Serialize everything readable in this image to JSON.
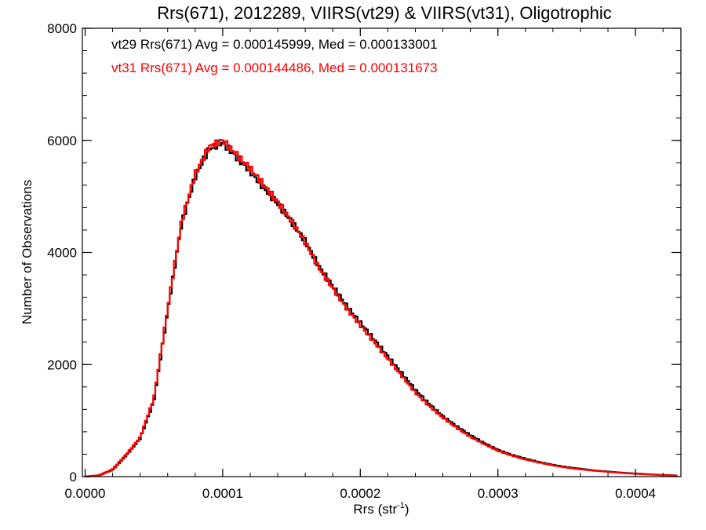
{
  "chart_data": {
    "type": "line",
    "title": "Rrs(671), 2012289, VIIRS(vt29) & VIIRS(vt31), Oligotrophic",
    "xlabel_base": "Rrs (str",
    "xlabel_sup": "-1",
    "xlabel_end": ")",
    "ylabel": "Number of Observations",
    "xlim": [
      -2e-06,
      0.000433
    ],
    "ylim": [
      0,
      8000
    ],
    "x_ticks": [
      0,
      0.0001,
      0.0002,
      0.0003,
      0.0004
    ],
    "x_tick_labels": [
      "0.0000",
      "0.0001",
      "0.0002",
      "0.0003",
      "0.0004"
    ],
    "y_ticks": [
      0,
      2000,
      4000,
      6000,
      8000
    ],
    "y_tick_labels": [
      "0",
      "2000",
      "4000",
      "6000",
      "8000"
    ],
    "grid": false,
    "annotations": [
      {
        "text": "vt29 Rrs(671) Avg = 0.000145999, Med = 0.000133001",
        "color": "#000000"
      },
      {
        "text": "vt31 Rrs(671) Avg = 0.000144486, Med = 0.000131673",
        "color": "#ff0000"
      }
    ],
    "x": [
      0,
      1e-05,
      2e-05,
      3e-05,
      4e-05,
      5e-05,
      6e-05,
      7e-05,
      8e-05,
      9e-05,
      0.0001,
      0.00011,
      0.00012,
      0.00013,
      0.00014,
      0.00015,
      0.00016,
      0.00017,
      0.00018,
      0.00019,
      0.0002,
      0.00021,
      0.00022,
      0.00023,
      0.00024,
      0.00025,
      0.00026,
      0.00027,
      0.00028,
      0.00029,
      0.0003,
      0.00031,
      0.00032,
      0.00033,
      0.00034,
      0.00035,
      0.00036,
      0.00037,
      0.00038,
      0.00039,
      0.0004,
      0.00041,
      0.00042,
      0.00043
    ],
    "series": [
      {
        "color": "#000000",
        "values": [
          0,
          20,
          120,
          380,
          680,
          1350,
          2950,
          4500,
          5350,
          5850,
          5960,
          5700,
          5450,
          5150,
          4870,
          4550,
          4200,
          3750,
          3400,
          3050,
          2750,
          2450,
          2150,
          1850,
          1550,
          1300,
          1080,
          900,
          740,
          600,
          480,
          390,
          320,
          260,
          210,
          170,
          140,
          110,
          90,
          70,
          55,
          40,
          30,
          20
        ]
      },
      {
        "color": "#ff0000",
        "values": [
          0,
          25,
          130,
          400,
          700,
          1400,
          3000,
          4550,
          5400,
          5880,
          6000,
          5750,
          5500,
          5200,
          4900,
          4560,
          4180,
          3720,
          3360,
          3000,
          2700,
          2400,
          2100,
          1800,
          1500,
          1260,
          1050,
          870,
          710,
          580,
          460,
          375,
          305,
          250,
          200,
          160,
          130,
          105,
          85,
          65,
          50,
          37,
          27,
          18
        ]
      }
    ]
  }
}
